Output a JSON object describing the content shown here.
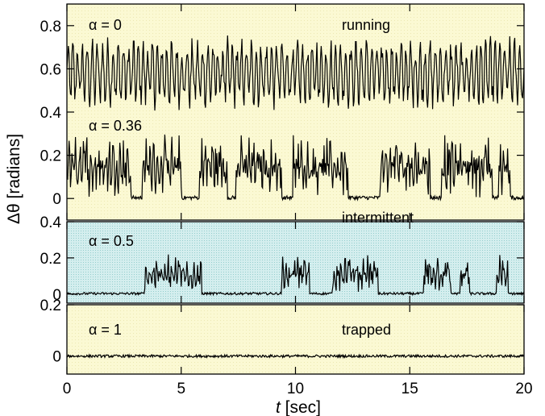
{
  "chart_data": {
    "type": "line",
    "xlabel_var": "t",
    "xlabel_unit": " [sec]",
    "ylabel": "Δθ [radians]",
    "x_axis": {
      "range": [
        0,
        20
      ],
      "ticks": [
        0,
        5,
        10,
        15,
        20
      ],
      "tick_labels": [
        "0",
        "5",
        "10",
        "15",
        "20"
      ]
    },
    "colors": {
      "yellow_bg": "#fbf9d3",
      "cyan_bg": "#d4eeee",
      "line": "#000000"
    },
    "panels": [
      {
        "id": "upper",
        "background": "yellow",
        "ylim": [
          -0.1,
          0.9
        ],
        "ticks": [
          0,
          0.2,
          0.4,
          0.6,
          0.8
        ],
        "tick_labels": [
          "0",
          "0.2",
          "0.4",
          "0.6",
          "0.8"
        ],
        "series": [
          {
            "label": "α = 0",
            "annotation": "running",
            "regime": "running",
            "baseline": 0.58,
            "amplitude": 0.13
          },
          {
            "label": "α = 0.36",
            "annotation": "",
            "regime": "bursty",
            "baseline": 0.0,
            "amplitude": 0.3,
            "bursts": [
              [
                0,
                2.8
              ],
              [
                3.3,
                5.0
              ],
              [
                5.3,
                4.7
              ],
              [
                5.8,
                7.0
              ],
              [
                7.4,
                9.4
              ],
              [
                9.9,
                12.3
              ],
              [
                13.7,
                15.9
              ],
              [
                16.4,
                18.6
              ],
              [
                18.9,
                19.4
              ]
            ]
          }
        ]
      },
      {
        "id": "middle",
        "background": "cyan",
        "ylim": [
          -0.05,
          0.4
        ],
        "ticks": [
          0,
          0.2,
          0.4
        ],
        "tick_labels": [
          "0",
          "0.2",
          "0.4"
        ],
        "series": [
          {
            "label": "α = 0.5",
            "annotation": "intermittent",
            "regime": "intermittent",
            "baseline": 0.0,
            "amplitude": 0.22,
            "bursts": [
              [
                3.4,
                5.9
              ],
              [
                9.4,
                10.6
              ],
              [
                11.6,
                13.6
              ],
              [
                15.6,
                16.8
              ],
              [
                17.2,
                17.6
              ],
              [
                18.8,
                19.3
              ]
            ]
          }
        ]
      },
      {
        "id": "lower",
        "background": "yellow",
        "ylim": [
          -0.07,
          0.2
        ],
        "ticks": [
          0,
          0.2
        ],
        "tick_labels": [
          "0",
          "0.2"
        ],
        "series": [
          {
            "label": "α = 1",
            "annotation": "trapped",
            "regime": "trapped",
            "baseline": 0.0,
            "amplitude": 0.01
          }
        ]
      }
    ]
  }
}
